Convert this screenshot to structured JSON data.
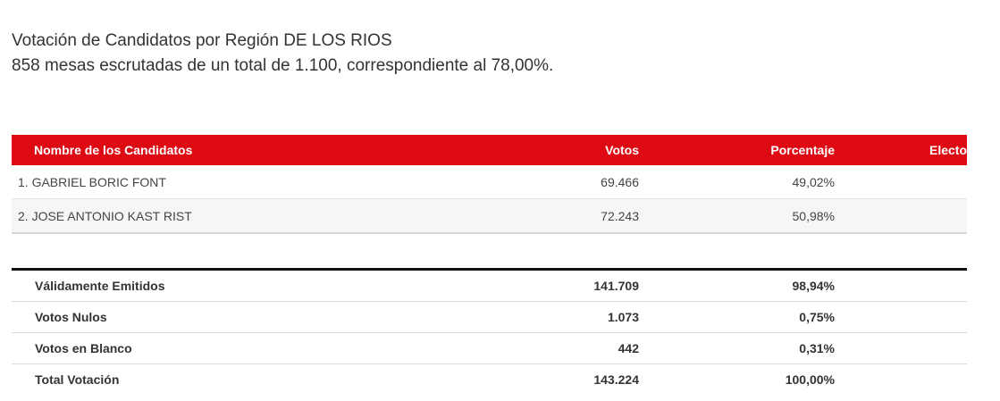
{
  "header": {
    "title": "Votación de Candidatos por Región DE LOS RIOS",
    "subtitle": "858 mesas escrutadas de un total de 1.100, correspondiente al 78,00%."
  },
  "colors": {
    "accent": "#dd0a14"
  },
  "table": {
    "columns": [
      "Nombre de los Candidatos",
      "Votos",
      "Porcentaje",
      "Electo"
    ],
    "rows": [
      {
        "name": "1. GABRIEL BORIC FONT",
        "votes": "69.466",
        "pct": "49,02%",
        "electo": ""
      },
      {
        "name": "2. JOSE ANTONIO KAST RIST",
        "votes": "72.243",
        "pct": "50,98%",
        "electo": ""
      }
    ]
  },
  "totals": [
    {
      "label": "Válidamente Emitidos",
      "votes": "141.709",
      "pct": "98,94%"
    },
    {
      "label": "Votos Nulos",
      "votes": "1.073",
      "pct": "0,75%"
    },
    {
      "label": "Votos en Blanco",
      "votes": "442",
      "pct": "0,31%"
    },
    {
      "label": "Total Votación",
      "votes": "143.224",
      "pct": "100,00%"
    }
  ]
}
